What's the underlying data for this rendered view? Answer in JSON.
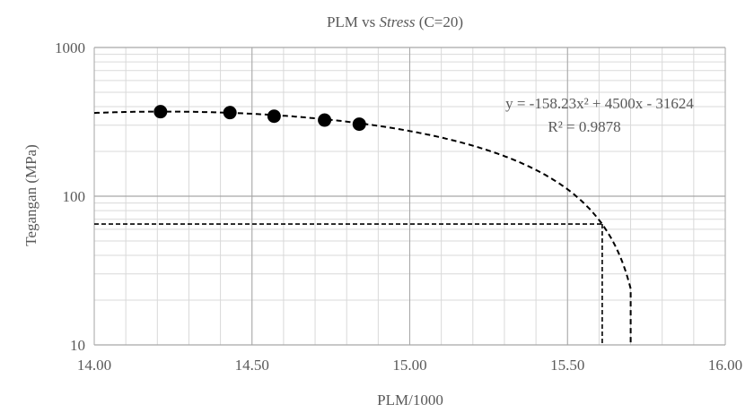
{
  "chart_data": {
    "type": "scatter",
    "title_parts": [
      "PLM vs ",
      "Stress",
      " (C=20)"
    ],
    "xlabel": "PLM/1000",
    "ylabel": "Tegangan (MPa)",
    "xlim": [
      14.0,
      16.0
    ],
    "ylim": [
      10,
      1000
    ],
    "y_scale": "log",
    "x_ticks": [
      "14.00",
      "14.50",
      "15.00",
      "15.50",
      "16.00"
    ],
    "y_ticks": [
      "10",
      "100",
      "1000"
    ],
    "grid": true,
    "points": [
      {
        "x": 14.21,
        "y": 370
      },
      {
        "x": 14.43,
        "y": 365
      },
      {
        "x": 14.57,
        "y": 345
      },
      {
        "x": 14.73,
        "y": 325
      },
      {
        "x": 14.84,
        "y": 305
      }
    ],
    "trendline": {
      "type": "polynomial",
      "coefficients": [
        -158.23,
        4500,
        -31624
      ],
      "equation": "y = -158.23x² + 4500x - 31624",
      "r_squared": "R² = 0.9878"
    },
    "reference_lines": [
      {
        "y": 65,
        "x_at_curve": 15.61
      },
      {
        "x": 15.71
      }
    ],
    "colors": {
      "marker": "#000000",
      "grid_major": "#a6a6a6",
      "grid_minor": "#d9d9d9",
      "text": "#595959"
    }
  }
}
